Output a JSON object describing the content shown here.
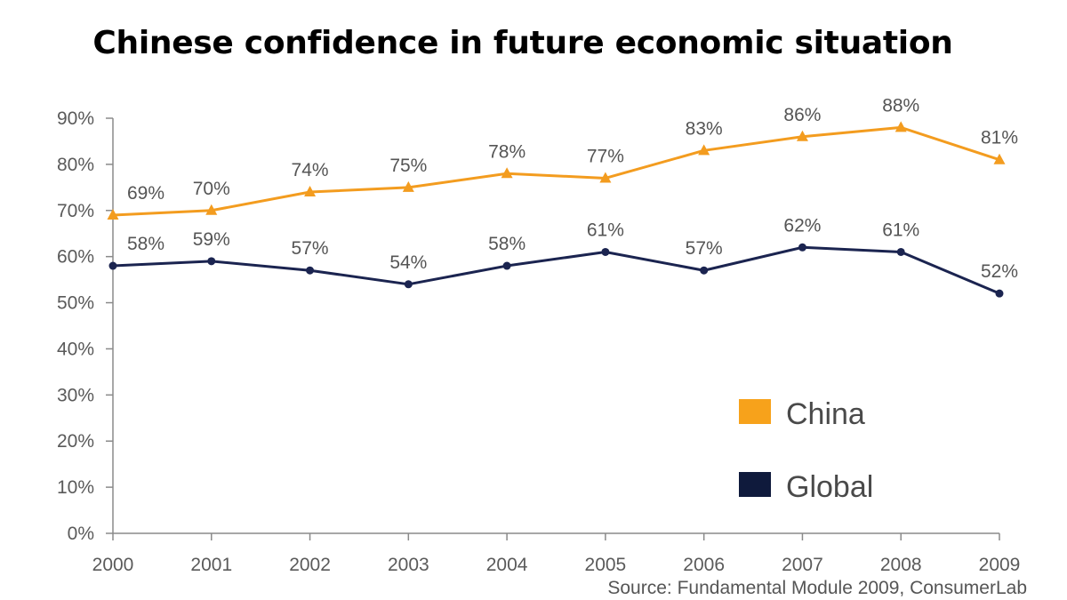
{
  "chart_data": {
    "type": "line",
    "title": "Chinese confidence in future economic situation",
    "categories": [
      "2000",
      "2001",
      "2002",
      "2003",
      "2004",
      "2005",
      "2006",
      "2007",
      "2008",
      "2009"
    ],
    "series": [
      {
        "name": "China",
        "color": "#f39c1f",
        "legend_color": "#f7a21b",
        "marker": "triangle",
        "values": [
          69,
          70,
          74,
          75,
          78,
          77,
          83,
          86,
          88,
          81
        ]
      },
      {
        "name": "Global",
        "color": "#1b2450",
        "legend_color": "#0f1a3c",
        "marker": "circle",
        "values": [
          58,
          59,
          57,
          54,
          58,
          61,
          57,
          62,
          61,
          52
        ]
      }
    ],
    "ylim": [
      0,
      90
    ],
    "yticks": [
      0,
      10,
      20,
      30,
      40,
      50,
      60,
      70,
      80,
      90
    ],
    "value_suffix": "%",
    "xlabel": "",
    "ylabel": "",
    "legend_position": "bottom-right",
    "source": "Source: Fundamental Module 2009, ConsumerLab",
    "grid": false
  }
}
